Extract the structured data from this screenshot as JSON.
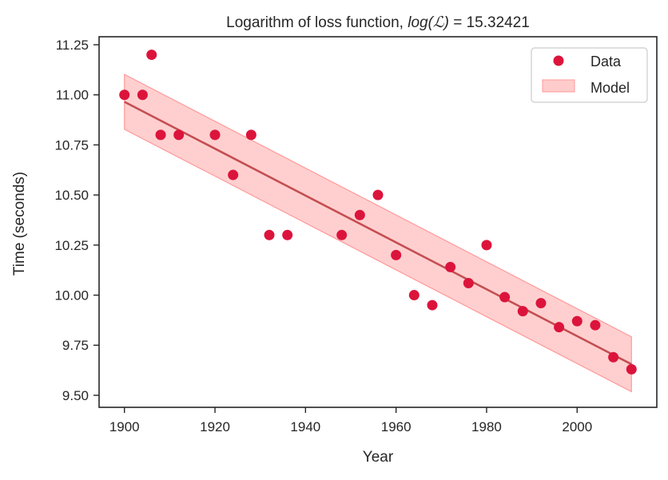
{
  "chart_data": {
    "type": "scatter",
    "title": {
      "prefix": "Logarithm of loss function, ",
      "math": "log(ℒ)",
      "suffix": " = 15.32421"
    },
    "xlabel": "Year",
    "ylabel": "Time (seconds)",
    "xlim": [
      1894.4,
      2017.6
    ],
    "ylim": [
      9.44,
      11.29
    ],
    "xticks": [
      1900,
      1920,
      1940,
      1960,
      1980,
      2000
    ],
    "yticks": [
      9.5,
      9.75,
      10.0,
      10.25,
      10.5,
      10.75,
      11.0,
      11.25
    ],
    "ytick_labels": [
      "9.50",
      "9.75",
      "10.00",
      "10.25",
      "10.50",
      "10.75",
      "11.00",
      "11.25"
    ],
    "grid": false,
    "legend": {
      "placement": "top-right",
      "entries": [
        "Data",
        "Model"
      ]
    },
    "series": [
      {
        "name": "Data",
        "kind": "points",
        "color": "#dc143c",
        "x": [
          1900,
          1904,
          1906,
          1908,
          1912,
          1920,
          1924,
          1928,
          1932,
          1936,
          1948,
          1952,
          1956,
          1960,
          1964,
          1968,
          1972,
          1976,
          1980,
          1984,
          1988,
          1992,
          1996,
          2000,
          2004,
          2008,
          2012
        ],
        "y": [
          11.0,
          11.0,
          11.2,
          10.8,
          10.8,
          10.8,
          10.6,
          10.8,
          10.3,
          10.3,
          10.3,
          10.4,
          10.5,
          10.2,
          10.0,
          9.95,
          10.14,
          10.06,
          10.25,
          9.99,
          9.92,
          9.96,
          9.84,
          9.87,
          9.85,
          9.69,
          9.63
        ]
      },
      {
        "name": "Model",
        "kind": "line-with-band",
        "line_color": "#c44e52",
        "band_color": "#ff9999",
        "x": [
          1900,
          2012
        ],
        "y": [
          10.965,
          9.655
        ],
        "band_halfwidth": 0.137
      }
    ]
  }
}
